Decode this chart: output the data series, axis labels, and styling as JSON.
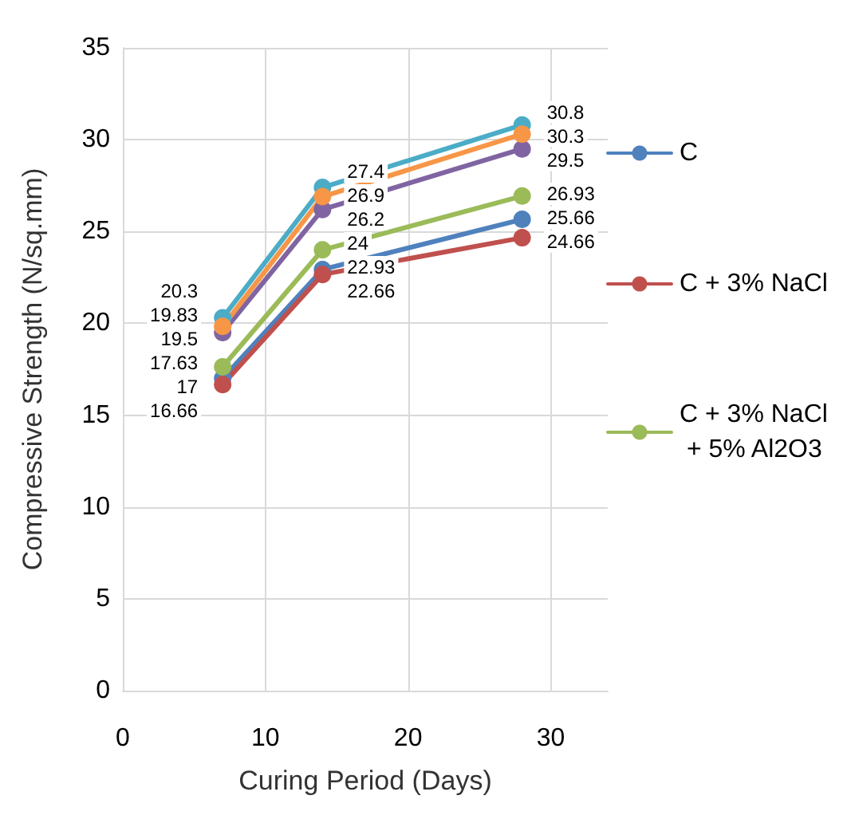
{
  "chart_data": {
    "type": "line",
    "xlabel": "Curing Period (Days)",
    "ylabel": "Compressive Strength (N/sq.mm)",
    "x": [
      7,
      14,
      28
    ],
    "series": [
      {
        "name": "C",
        "color": "#4f81bd",
        "values": [
          17,
          22.93,
          25.66
        ]
      },
      {
        "name": "C + 3% NaCl",
        "color": "#c0504d",
        "values": [
          16.66,
          22.66,
          24.66
        ]
      },
      {
        "name": "C + 3% NaCl + 5% Al2O3",
        "color": "#9bbb59",
        "values": [
          17.63,
          24,
          26.93
        ]
      },
      {
        "color": "#8064a2",
        "values": [
          19.5,
          26.2,
          29.5
        ]
      },
      {
        "color": "#4bacc6",
        "values": [
          20.3,
          27.4,
          30.8
        ]
      },
      {
        "color": "#f79646",
        "values": [
          19.83,
          26.9,
          30.3
        ]
      }
    ],
    "xlim": [
      0,
      34
    ],
    "xticks": [
      0,
      10,
      20,
      30
    ],
    "ylim": [
      0,
      35
    ],
    "yticks": [
      0,
      5,
      10,
      15,
      20,
      25,
      30,
      35
    ],
    "grid": true,
    "legend": "right",
    "marker": "circle",
    "line_style": "solid",
    "data_labels": true
  }
}
